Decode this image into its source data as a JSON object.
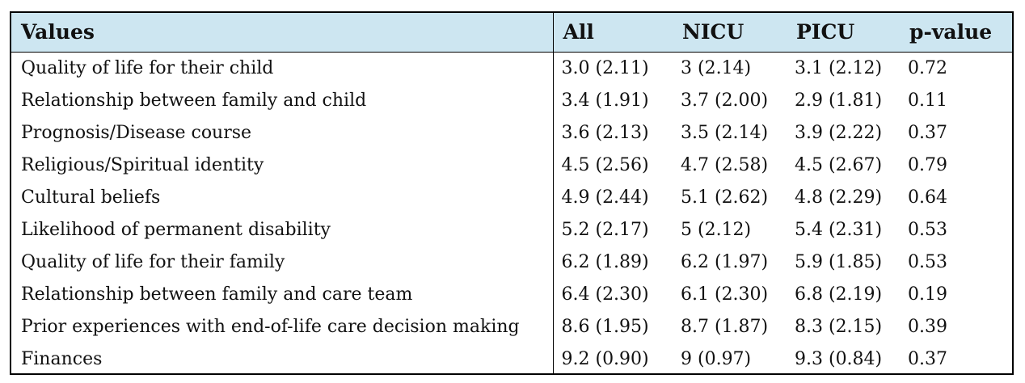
{
  "table": {
    "headers": [
      "Values",
      "All",
      "NICU",
      "PICU",
      "p-value"
    ],
    "rows": [
      [
        "Quality of life for their child",
        "3.0 (2.11)",
        "3 (2.14)",
        " 3.1 (2.12)",
        "0.72"
      ],
      [
        "Relationship between family and child",
        "3.4 (1.91)",
        "3.7 (2.00)",
        "2.9 (1.81)",
        "0.11"
      ],
      [
        "Prognosis/Disease course",
        "3.6 (2.13)",
        "3.5 (2.14)",
        "3.9 (2.22)",
        "0.37"
      ],
      [
        "Religious/Spiritual identity",
        "4.5 (2.56)",
        "4.7 (2.58)",
        "4.5 (2.67)",
        "0.79"
      ],
      [
        "Cultural beliefs",
        "4.9 (2.44)",
        "5.1 (2.62)",
        "4.8 (2.29)",
        "0.64"
      ],
      [
        "Likelihood of permanent disability",
        "5.2 (2.17)",
        "5 (2.12)",
        "5.4 (2.31)",
        "0.53"
      ],
      [
        "Quality of life for their family",
        "6.2 (1.89)",
        "6.2 (1.97)",
        "5.9 (1.85)",
        "0.53"
      ],
      [
        "Relationship between family and care team",
        "6.4 (2.30)",
        "6.1 (2.30)",
        "6.8 (2.19)",
        "0.19"
      ],
      [
        "Prior experiences with end-of-life care decision making",
        "8.6 (1.95)",
        "8.7 (1.87)",
        "8.3 (2.15)",
        "0.39"
      ],
      [
        "Finances",
        "9.2 (0.90)",
        "9 (0.97)",
        "9.3 (0.84)",
        "0.37"
      ]
    ]
  },
  "colors": {
    "header_background": "#cde6f1",
    "border": "#000000",
    "text": "#111111"
  }
}
